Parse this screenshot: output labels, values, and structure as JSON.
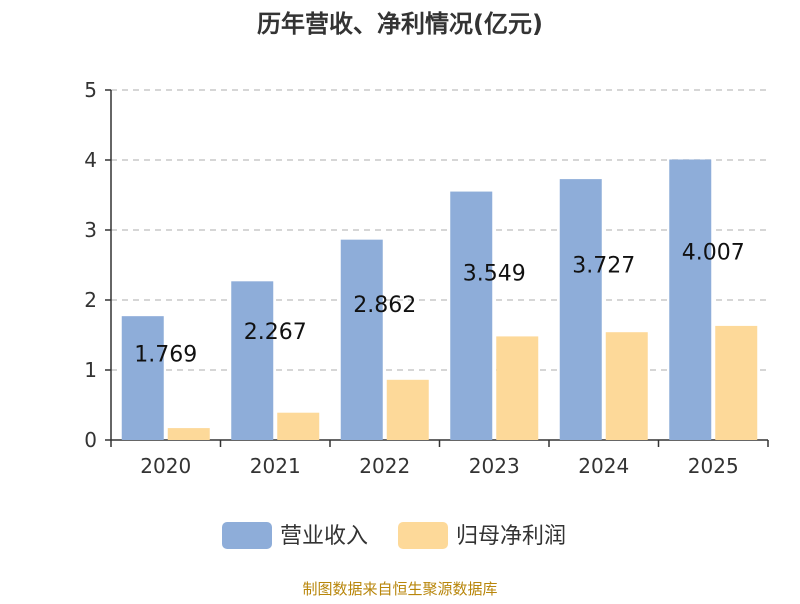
{
  "chart_data": {
    "type": "bar",
    "title": "历年营收、净利情况(亿元)",
    "xlabel": "",
    "ylabel": "",
    "categories": [
      "2020",
      "2021",
      "2022",
      "2023",
      "2024",
      "2025"
    ],
    "series": [
      {
        "name": "营业收入",
        "color": "#8eadd9",
        "values": [
          1.769,
          2.267,
          2.862,
          3.549,
          3.727,
          4.007
        ],
        "labels": [
          "1.769",
          "2.267",
          "2.862",
          "3.549",
          "3.727",
          "4.007"
        ]
      },
      {
        "name": "归母净利润",
        "color": "#fdd999",
        "values": [
          0.17,
          0.39,
          0.86,
          1.48,
          1.54,
          1.63
        ]
      }
    ],
    "ylim": [
      0,
      5
    ],
    "yticks": [
      "0",
      "1",
      "2",
      "3",
      "4",
      "5"
    ],
    "grid": true,
    "legend_position": "bottom"
  },
  "footer": "制图数据来自恒生聚源数据库"
}
